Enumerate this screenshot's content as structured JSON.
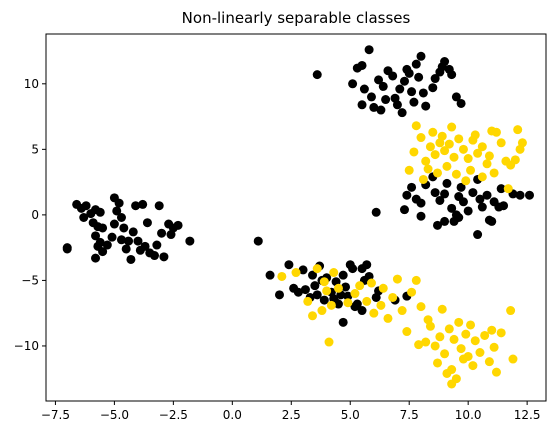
{
  "chart_data": {
    "type": "scatter",
    "title": "Non-linearly separable classes",
    "xlabel": "",
    "ylabel": "",
    "xlim": [
      -7.9,
      13.3
    ],
    "ylim": [
      -14.2,
      13.8
    ],
    "grid": false,
    "legend": "none",
    "xticks": [
      -7.5,
      -5.0,
      -2.5,
      0.0,
      2.5,
      5.0,
      7.5,
      10.0,
      12.5
    ],
    "xtick_labels": [
      "−7.5",
      "−5.0",
      "−2.5",
      "0.0",
      "2.5",
      "5.0",
      "7.5",
      "10.0",
      "12.5"
    ],
    "yticks": [
      -10,
      -5,
      0,
      5,
      10
    ],
    "ytick_labels": [
      "−10",
      "−5",
      "0",
      "5",
      "10"
    ],
    "series": [
      {
        "color": "#000000",
        "points": [
          [
            -7.0,
            -2.5
          ],
          [
            -7.0,
            -2.6
          ],
          [
            -6.6,
            0.8
          ],
          [
            -6.4,
            0.5
          ],
          [
            -6.2,
            0.7
          ],
          [
            -6.3,
            -0.2
          ],
          [
            -6.0,
            0.1
          ],
          [
            -5.8,
            0.4
          ],
          [
            -5.6,
            0.2
          ],
          [
            -5.9,
            -0.6
          ],
          [
            -5.7,
            -0.9
          ],
          [
            -5.5,
            -1.0
          ],
          [
            -5.8,
            -1.6
          ],
          [
            -5.6,
            -2.1
          ],
          [
            -5.7,
            -2.4
          ],
          [
            -5.8,
            -3.3
          ],
          [
            -5.5,
            -2.8
          ],
          [
            -5.3,
            -2.3
          ],
          [
            -5.1,
            -1.7
          ],
          [
            -5.0,
            -0.7
          ],
          [
            -4.9,
            0.3
          ],
          [
            -5.0,
            1.3
          ],
          [
            -4.8,
            0.9
          ],
          [
            -4.7,
            -0.2
          ],
          [
            -4.6,
            -1.0
          ],
          [
            -4.7,
            -1.9
          ],
          [
            -4.5,
            -2.6
          ],
          [
            -4.4,
            -2.0
          ],
          [
            -4.2,
            -1.3
          ],
          [
            -4.3,
            -3.4
          ],
          [
            -4.0,
            -2.0
          ],
          [
            -3.9,
            -2.7
          ],
          [
            -4.1,
            0.7
          ],
          [
            -3.8,
            0.8
          ],
          [
            -3.6,
            -0.6
          ],
          [
            -3.7,
            -2.4
          ],
          [
            -3.5,
            -2.9
          ],
          [
            -3.3,
            -3.1
          ],
          [
            -3.2,
            -2.3
          ],
          [
            -3.0,
            -1.4
          ],
          [
            -3.1,
            0.7
          ],
          [
            -2.9,
            -3.2
          ],
          [
            -2.7,
            -0.7
          ],
          [
            -2.5,
            -1.0
          ],
          [
            -2.3,
            -0.8
          ],
          [
            -2.6,
            -1.5
          ],
          [
            -1.8,
            -2.0
          ],
          [
            3.6,
            10.7
          ],
          [
            5.3,
            11.2
          ],
          [
            5.5,
            11.4
          ],
          [
            5.8,
            12.6
          ],
          [
            5.1,
            10.0
          ],
          [
            5.6,
            9.6
          ],
          [
            6.2,
            10.3
          ],
          [
            6.4,
            9.8
          ],
          [
            6.6,
            11.0
          ],
          [
            6.8,
            10.6
          ],
          [
            6.5,
            8.8
          ],
          [
            6.0,
            8.2
          ],
          [
            5.5,
            8.4
          ],
          [
            6.3,
            8.0
          ],
          [
            6.9,
            8.9
          ],
          [
            7.1,
            9.6
          ],
          [
            7.3,
            10.2
          ],
          [
            7.4,
            11.1
          ],
          [
            7.5,
            10.8
          ],
          [
            7.6,
            9.4
          ],
          [
            7.7,
            8.6
          ],
          [
            7.8,
            11.5
          ],
          [
            8.0,
            12.1
          ],
          [
            7.9,
            10.5
          ],
          [
            8.1,
            9.3
          ],
          [
            8.2,
            8.3
          ],
          [
            8.5,
            9.7
          ],
          [
            8.6,
            10.4
          ],
          [
            8.8,
            10.9
          ],
          [
            8.9,
            11.3
          ],
          [
            9.0,
            11.7
          ],
          [
            9.2,
            11.1
          ],
          [
            9.3,
            10.7
          ],
          [
            9.7,
            8.5
          ],
          [
            9.5,
            9.0
          ],
          [
            7.0,
            8.4
          ],
          [
            7.2,
            7.8
          ],
          [
            5.9,
            9.0
          ],
          [
            6.1,
            0.2
          ],
          [
            7.3,
            0.4
          ],
          [
            7.4,
            1.5
          ],
          [
            7.6,
            2.1
          ],
          [
            7.8,
            1.2
          ],
          [
            8.0,
            0.9
          ],
          [
            8.2,
            2.3
          ],
          [
            8.5,
            2.9
          ],
          [
            8.6,
            1.7
          ],
          [
            8.8,
            1.1
          ],
          [
            9.0,
            1.6
          ],
          [
            9.1,
            2.4
          ],
          [
            9.3,
            0.5
          ],
          [
            9.5,
            0.0
          ],
          [
            9.6,
            1.4
          ],
          [
            9.7,
            2.1
          ],
          [
            9.8,
            1.0
          ],
          [
            10.0,
            0.3
          ],
          [
            10.2,
            1.7
          ],
          [
            10.4,
            2.7
          ],
          [
            10.5,
            1.2
          ],
          [
            10.6,
            0.6
          ],
          [
            10.8,
            1.5
          ],
          [
            10.9,
            -0.4
          ],
          [
            11.1,
            1.0
          ],
          [
            11.3,
            0.6
          ],
          [
            11.4,
            2.0
          ],
          [
            11.5,
            0.7
          ],
          [
            11.9,
            1.6
          ],
          [
            12.2,
            1.5
          ],
          [
            12.6,
            1.5
          ],
          [
            9.6,
            -0.2
          ],
          [
            9.4,
            -0.5
          ],
          [
            9.0,
            -0.5
          ],
          [
            8.7,
            -0.8
          ],
          [
            10.4,
            -1.5
          ],
          [
            11.0,
            -0.5
          ],
          [
            8.0,
            -0.1
          ],
          [
            1.1,
            -2.0
          ],
          [
            1.6,
            -4.6
          ],
          [
            2.0,
            -6.1
          ],
          [
            2.4,
            -3.8
          ],
          [
            2.6,
            -5.6
          ],
          [
            2.8,
            -5.9
          ],
          [
            3.0,
            -4.2
          ],
          [
            3.1,
            -5.7
          ],
          [
            3.3,
            -6.3
          ],
          [
            3.4,
            -4.6
          ],
          [
            3.5,
            -5.4
          ],
          [
            3.6,
            -6.1
          ],
          [
            3.7,
            -3.9
          ],
          [
            3.8,
            -5.0
          ],
          [
            3.9,
            -6.5
          ],
          [
            4.0,
            -4.8
          ],
          [
            4.2,
            -5.9
          ],
          [
            4.3,
            -6.4
          ],
          [
            4.4,
            -5.1
          ],
          [
            4.5,
            -6.8
          ],
          [
            4.6,
            -6.1
          ],
          [
            4.7,
            -4.6
          ],
          [
            4.8,
            -5.5
          ],
          [
            4.9,
            -6.2
          ],
          [
            5.0,
            -3.8
          ],
          [
            5.1,
            -4.1
          ],
          [
            5.2,
            -7.0
          ],
          [
            5.3,
            -6.8
          ],
          [
            5.5,
            -4.1
          ],
          [
            5.6,
            -5.0
          ],
          [
            5.7,
            -3.8
          ],
          [
            5.8,
            -4.7
          ],
          [
            6.1,
            -6.3
          ],
          [
            6.2,
            -5.8
          ],
          [
            4.7,
            -8.2
          ],
          [
            4.4,
            -6.7
          ],
          [
            5.5,
            -7.3
          ],
          [
            6.9,
            -6.5
          ],
          [
            7.4,
            -6.2
          ]
        ]
      },
      {
        "color": "#FFD700",
        "points": [
          [
            7.7,
            4.8
          ],
          [
            7.8,
            6.8
          ],
          [
            8.0,
            5.9
          ],
          [
            8.2,
            4.1
          ],
          [
            8.3,
            3.5
          ],
          [
            8.4,
            5.2
          ],
          [
            8.5,
            6.3
          ],
          [
            8.6,
            4.6
          ],
          [
            8.7,
            3.2
          ],
          [
            8.8,
            5.5
          ],
          [
            8.9,
            6.0
          ],
          [
            9.0,
            4.9
          ],
          [
            9.1,
            3.7
          ],
          [
            9.2,
            5.4
          ],
          [
            9.3,
            6.7
          ],
          [
            9.4,
            4.4
          ],
          [
            9.5,
            3.1
          ],
          [
            9.6,
            5.8
          ],
          [
            9.8,
            5.0
          ],
          [
            10.0,
            4.3
          ],
          [
            10.1,
            3.4
          ],
          [
            10.2,
            5.7
          ],
          [
            10.3,
            6.1
          ],
          [
            10.4,
            4.7
          ],
          [
            10.6,
            5.2
          ],
          [
            10.8,
            3.9
          ],
          [
            10.9,
            4.5
          ],
          [
            11.0,
            6.4
          ],
          [
            11.2,
            6.3
          ],
          [
            11.4,
            5.5
          ],
          [
            11.6,
            4.1
          ],
          [
            11.8,
            3.8
          ],
          [
            12.0,
            4.2
          ],
          [
            12.1,
            6.5
          ],
          [
            12.2,
            5.0
          ],
          [
            12.3,
            5.5
          ],
          [
            7.5,
            3.4
          ],
          [
            8.1,
            2.7
          ],
          [
            10.6,
            2.9
          ],
          [
            11.1,
            3.2
          ],
          [
            11.7,
            2.0
          ],
          [
            9.9,
            2.6
          ],
          [
            2.1,
            -4.7
          ],
          [
            2.7,
            -4.4
          ],
          [
            3.2,
            -6.6
          ],
          [
            3.4,
            -7.7
          ],
          [
            3.6,
            -4.1
          ],
          [
            3.8,
            -7.3
          ],
          [
            4.0,
            -5.8
          ],
          [
            4.1,
            -9.7
          ],
          [
            4.3,
            -4.4
          ],
          [
            4.5,
            -5.6
          ],
          [
            4.9,
            -6.7
          ],
          [
            5.2,
            -6.0
          ],
          [
            5.4,
            -5.4
          ],
          [
            5.7,
            -6.6
          ],
          [
            5.9,
            -5.2
          ],
          [
            6.0,
            -7.5
          ],
          [
            6.3,
            -6.9
          ],
          [
            6.4,
            -5.6
          ],
          [
            6.6,
            -7.9
          ],
          [
            6.8,
            -6.3
          ],
          [
            7.0,
            -4.9
          ],
          [
            7.2,
            -7.3
          ],
          [
            7.4,
            -8.9
          ],
          [
            7.6,
            -5.9
          ],
          [
            7.8,
            -5.0
          ],
          [
            8.0,
            -7.0
          ],
          [
            8.2,
            -9.7
          ],
          [
            8.4,
            -8.5
          ],
          [
            8.6,
            -10.0
          ],
          [
            8.7,
            -11.3
          ],
          [
            8.8,
            -9.3
          ],
          [
            8.9,
            -7.2
          ],
          [
            9.0,
            -10.6
          ],
          [
            9.1,
            -12.1
          ],
          [
            9.2,
            -8.7
          ],
          [
            9.3,
            -11.8
          ],
          [
            9.4,
            -9.5
          ],
          [
            9.5,
            -12.5
          ],
          [
            9.6,
            -8.2
          ],
          [
            9.7,
            -10.2
          ],
          [
            9.8,
            -11.0
          ],
          [
            9.9,
            -9.1
          ],
          [
            10.0,
            -10.8
          ],
          [
            10.1,
            -8.4
          ],
          [
            10.2,
            -11.5
          ],
          [
            10.3,
            -9.6
          ],
          [
            10.5,
            -10.5
          ],
          [
            10.7,
            -9.2
          ],
          [
            10.9,
            -11.2
          ],
          [
            11.0,
            -8.8
          ],
          [
            11.1,
            -10.1
          ],
          [
            11.2,
            -12.0
          ],
          [
            11.4,
            -9.0
          ],
          [
            11.8,
            -7.3
          ],
          [
            11.9,
            -11.0
          ],
          [
            9.3,
            -12.9
          ],
          [
            7.9,
            -9.9
          ],
          [
            8.3,
            -8.0
          ],
          [
            4.2,
            -6.9
          ],
          [
            3.9,
            -5.1
          ]
        ]
      }
    ]
  }
}
